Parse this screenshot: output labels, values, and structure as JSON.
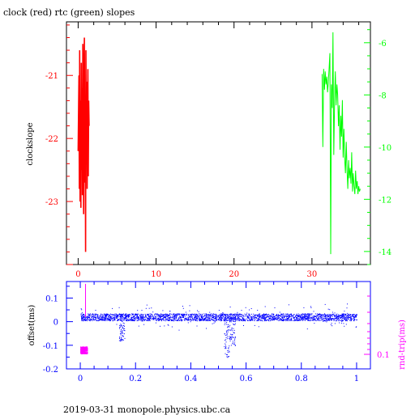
{
  "title": "clock (red) rtc (green) slopes",
  "footer": "2019-03-31 monopole.physics.ubc.ca",
  "colors": {
    "clock": "#ff0000",
    "rtc": "#00ff00",
    "offset": "#0000ff",
    "rndtrip": "#ff00ff",
    "axis": "#000000"
  },
  "chart_data": [
    {
      "type": "line",
      "title": "clock (red) rtc (green) slopes",
      "ylabel": "clockslope",
      "y2label": "",
      "xlim": [
        -1.5,
        37.5
      ],
      "ylim": [
        -24.0,
        -20.15
      ],
      "y2lim": [
        -14.5,
        -5.2
      ],
      "xticks": [
        "0",
        "10",
        "20",
        "30"
      ],
      "yticks": [
        "-21",
        "-22",
        "-23"
      ],
      "y2ticks": [
        "-6",
        "-8",
        "-10",
        "-12",
        "-14"
      ],
      "series": [
        {
          "name": "clock",
          "axis": "left",
          "x": [
            0.0,
            0.1,
            0.15,
            0.2,
            0.25,
            0.3,
            0.35,
            0.4,
            0.45,
            0.5,
            0.55,
            0.6,
            0.65,
            0.7,
            0.75,
            0.8,
            0.85,
            0.9,
            0.95,
            1.0,
            1.05,
            1.1,
            1.15,
            1.2,
            1.25,
            1.3,
            1.35,
            1.4
          ],
          "y": [
            -22.2,
            -21.0,
            -22.8,
            -20.6,
            -23.0,
            -21.4,
            -23.1,
            -20.8,
            -22.5,
            -21.2,
            -22.9,
            -20.5,
            -22.0,
            -23.2,
            -21.0,
            -20.4,
            -22.7,
            -21.6,
            -23.8,
            -20.6,
            -22.4,
            -21.1,
            -22.8,
            -21.9,
            -20.9,
            -22.6,
            -21.4,
            -21.8
          ]
        },
        {
          "name": "rtc",
          "axis": "right",
          "x": [
            31.3,
            31.4,
            31.5,
            31.6,
            31.7,
            31.8,
            31.9,
            32.0,
            32.1,
            32.2,
            32.3,
            32.4,
            32.5,
            32.6,
            32.7,
            32.8,
            32.9,
            33.0,
            33.1,
            33.2,
            33.3,
            33.4,
            33.5,
            33.6,
            33.7,
            33.8,
            33.9,
            34.0,
            34.1,
            34.2,
            34.3,
            34.4,
            34.5,
            34.6,
            34.7,
            34.8,
            34.9,
            35.0,
            35.1,
            35.2,
            35.3,
            35.4,
            35.5,
            35.6,
            35.7,
            35.8,
            35.9,
            36.0,
            36.1,
            36.2
          ],
          "y": [
            -7.2,
            -10.0,
            -7.0,
            -7.8,
            -7.1,
            -7.6,
            -7.3,
            -7.9,
            -7.5,
            -7.0,
            -6.4,
            -14.1,
            -7.6,
            -8.5,
            -5.6,
            -10.3,
            -8.2,
            -7.1,
            -8.4,
            -7.6,
            -8.0,
            -9.2,
            -8.4,
            -10.1,
            -8.8,
            -9.6,
            -8.2,
            -10.4,
            -9.3,
            -10.5,
            -11.0,
            -9.8,
            -10.9,
            -11.6,
            -10.5,
            -11.2,
            -10.8,
            -11.4,
            -10.2,
            -11.7,
            -11.0,
            -11.5,
            -11.8,
            -10.9,
            -11.6,
            -11.3,
            -11.8,
            -11.5,
            -11.7,
            -11.6
          ]
        }
      ]
    },
    {
      "type": "scatter",
      "ylabel": "offset(ms)",
      "y2label": "rnd-trip(ms)",
      "xlim": [
        -0.05,
        1.05
      ],
      "ylim": [
        -0.2,
        0.17
      ],
      "xticks": [
        "0",
        "0.2",
        "0.4",
        "0.6",
        "0.8",
        "1"
      ],
      "yticks": [
        "0.1",
        "0",
        "-0.1",
        "-0.2"
      ],
      "y2ticks": [
        "0.1"
      ],
      "series": [
        {
          "name": "offset",
          "axis": "left",
          "x_range": [
            0.0,
            1.0
          ],
          "center": 0.02,
          "spread": 0.03
        },
        {
          "name": "rnd-trip",
          "axis": "right",
          "x_range": [
            0.0,
            0.025
          ],
          "center": -0.12,
          "spread": 0.03
        }
      ]
    }
  ]
}
